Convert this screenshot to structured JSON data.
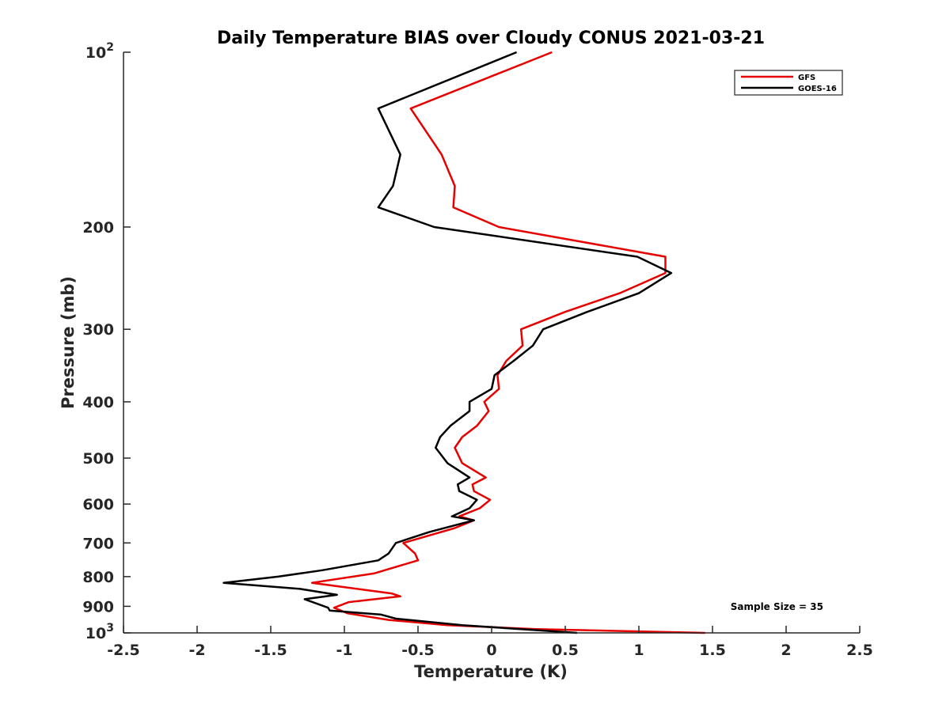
{
  "chart_data": {
    "type": "line",
    "title": "Daily Temperature BIAS over Cloudy CONUS 2021-03-21",
    "xlabel": "Temperature (K)",
    "ylabel": "Pressure (mb)",
    "xlim": [
      -2.5,
      2.5
    ],
    "ylim": [
      100,
      1000
    ],
    "y_scale": "log",
    "y_reversed": true,
    "x_ticks": [
      -2.5,
      -2,
      -1.5,
      -1,
      -0.5,
      0,
      0.5,
      1,
      1.5,
      2,
      2.5
    ],
    "x_tick_labels": [
      "-2.5",
      "-2",
      "-1.5",
      "-1",
      "-0.5",
      "0",
      "0.5",
      "1",
      "1.5",
      "2",
      "2.5"
    ],
    "y_ticks": [
      100,
      200,
      300,
      400,
      500,
      600,
      700,
      800,
      900,
      1000
    ],
    "y_tick_labels": [
      {
        "base": "10",
        "exp": "2"
      },
      {
        "base": "200",
        "exp": ""
      },
      {
        "base": "300",
        "exp": ""
      },
      {
        "base": "400",
        "exp": ""
      },
      {
        "base": "500",
        "exp": ""
      },
      {
        "base": "600",
        "exp": ""
      },
      {
        "base": "700",
        "exp": ""
      },
      {
        "base": "800",
        "exp": ""
      },
      {
        "base": "900",
        "exp": ""
      },
      {
        "base": "10",
        "exp": "3"
      }
    ],
    "legend_position": "top-right",
    "annotation": "Sample Size = 35",
    "series": [
      {
        "name": "GFS",
        "color": "#e60000",
        "points": [
          [
            0.41,
            100
          ],
          [
            -0.55,
            125
          ],
          [
            -0.34,
            150
          ],
          [
            -0.25,
            170
          ],
          [
            -0.26,
            185
          ],
          [
            0.05,
            200
          ],
          [
            1.18,
            225
          ],
          [
            1.18,
            240
          ],
          [
            0.87,
            260
          ],
          [
            0.5,
            280
          ],
          [
            0.2,
            300
          ],
          [
            0.21,
            320
          ],
          [
            0.1,
            340
          ],
          [
            0.04,
            360
          ],
          [
            0.05,
            380
          ],
          [
            -0.05,
            400
          ],
          [
            -0.02,
            415
          ],
          [
            -0.1,
            440
          ],
          [
            -0.2,
            460
          ],
          [
            -0.25,
            480
          ],
          [
            -0.2,
            510
          ],
          [
            -0.04,
            540
          ],
          [
            -0.13,
            555
          ],
          [
            -0.12,
            570
          ],
          [
            -0.01,
            590
          ],
          [
            -0.08,
            610
          ],
          [
            -0.22,
            630
          ],
          [
            -0.12,
            640
          ],
          [
            -0.25,
            660
          ],
          [
            -0.6,
            700
          ],
          [
            -0.52,
            730
          ],
          [
            -0.5,
            750
          ],
          [
            -0.8,
            790
          ],
          [
            -1.22,
            820
          ],
          [
            -0.68,
            855
          ],
          [
            -0.62,
            865
          ],
          [
            -0.97,
            885
          ],
          [
            -1.07,
            905
          ],
          [
            -0.98,
            925
          ],
          [
            -0.7,
            950
          ],
          [
            -0.3,
            970
          ],
          [
            0.3,
            985
          ],
          [
            1.45,
            1000
          ]
        ]
      },
      {
        "name": "GOES-16",
        "color": "#000000",
        "points": [
          [
            0.17,
            100
          ],
          [
            -0.77,
            125
          ],
          [
            -0.62,
            150
          ],
          [
            -0.67,
            170
          ],
          [
            -0.77,
            185
          ],
          [
            -0.39,
            200
          ],
          [
            0.99,
            225
          ],
          [
            1.22,
            240
          ],
          [
            1.0,
            260
          ],
          [
            0.65,
            280
          ],
          [
            0.35,
            300
          ],
          [
            0.28,
            320
          ],
          [
            0.15,
            340
          ],
          [
            0.02,
            360
          ],
          [
            0.0,
            380
          ],
          [
            -0.15,
            400
          ],
          [
            -0.15,
            415
          ],
          [
            -0.28,
            440
          ],
          [
            -0.35,
            460
          ],
          [
            -0.38,
            480
          ],
          [
            -0.3,
            510
          ],
          [
            -0.15,
            540
          ],
          [
            -0.23,
            555
          ],
          [
            -0.22,
            570
          ],
          [
            -0.1,
            590
          ],
          [
            -0.15,
            610
          ],
          [
            -0.27,
            630
          ],
          [
            -0.12,
            640
          ],
          [
            -0.42,
            670
          ],
          [
            -0.65,
            700
          ],
          [
            -0.7,
            730
          ],
          [
            -0.77,
            750
          ],
          [
            -1.15,
            780
          ],
          [
            -1.45,
            800
          ],
          [
            -1.82,
            820
          ],
          [
            -1.3,
            840
          ],
          [
            -1.05,
            860
          ],
          [
            -1.27,
            875
          ],
          [
            -1.11,
            905
          ],
          [
            -1.1,
            915
          ],
          [
            -0.75,
            930
          ],
          [
            -0.65,
            945
          ],
          [
            -0.2,
            970
          ],
          [
            0.58,
            1000
          ]
        ]
      }
    ]
  }
}
